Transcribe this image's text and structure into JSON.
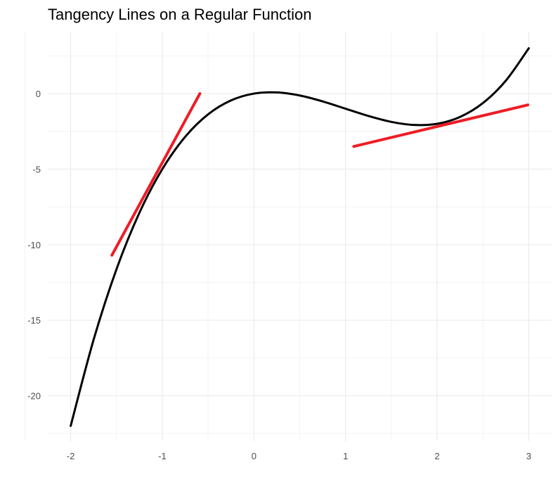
{
  "chart_data": {
    "type": "line",
    "title": "Tangency Lines on a Regular Function",
    "xlabel": "",
    "ylabel": "",
    "xlim": [
      -2.25,
      3.25
    ],
    "ylim": [
      -23.0,
      4.1
    ],
    "x_ticks": [
      -2,
      -1,
      0,
      1,
      2,
      3
    ],
    "x_tick_labels": [
      "-2",
      "-1",
      "0",
      "1",
      "2",
      "3"
    ],
    "y_ticks": [
      0,
      -5,
      -10,
      -15,
      -20
    ],
    "y_tick_labels": [
      "0",
      "-5",
      "-10",
      "-15",
      "-20"
    ],
    "grid": true,
    "legend": "none",
    "series": [
      {
        "role": "function",
        "color": "#000000",
        "x": [
          -2,
          -1.75,
          -1.5,
          -1.25,
          -1,
          -0.75,
          -0.5,
          -0.25,
          0,
          0.25,
          0.5,
          0.75,
          1,
          1.25,
          1.5,
          1.75,
          2,
          2.25,
          2.5,
          2.75,
          3
        ],
        "y": [
          -22,
          -16.297,
          -11.625,
          -7.891,
          -5,
          -2.859,
          -1.375,
          -0.453,
          0,
          0.078,
          -0.125,
          -0.516,
          -1,
          -1.484,
          -1.875,
          -2.078,
          -2,
          -1.547,
          -0.625,
          0.859,
          3
        ]
      },
      {
        "role": "tangent",
        "color": "#EE1C25",
        "x": [
          -1.55,
          -0.59
        ],
        "y": [
          -10.7,
          0.0
        ]
      },
      {
        "role": "tangent",
        "color": "#EE1C25",
        "x": [
          1.09,
          2.99
        ],
        "y": [
          -3.5,
          -0.75
        ]
      }
    ]
  }
}
